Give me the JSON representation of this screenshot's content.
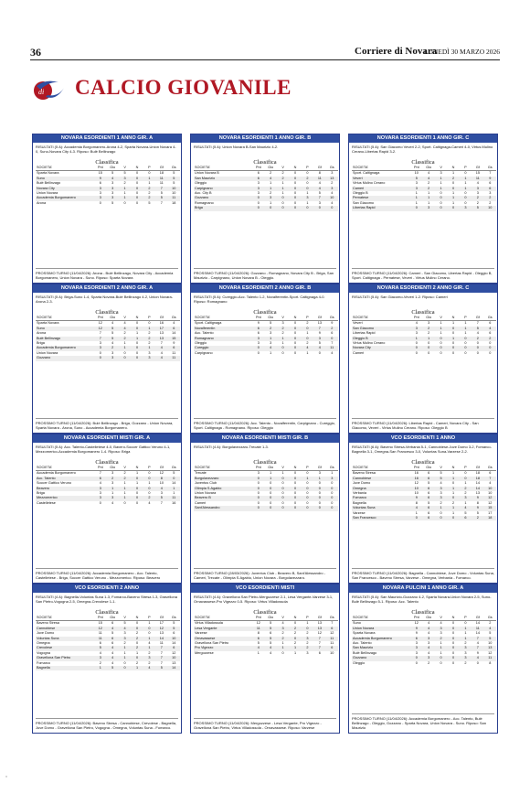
{
  "header": {
    "page_number": "36",
    "newspaper": "Corriere di Novara",
    "date": "LUNEDÌ 30 MARZO 2026"
  },
  "section": {
    "title": "CALCIO GIOVANILE",
    "logo_letter": "di"
  },
  "labels": {
    "classifica": "Classifica",
    "columns": [
      "SOCIETA'",
      "Pnt",
      "Gio",
      "V",
      "N",
      "P",
      "Gf",
      "Gs"
    ]
  },
  "panels": [
    {
      "title": "NOVARA ESORDIENTI 1 ANNO GIR. A",
      "results": "RISULTATI (5 A): Accademia Borgomanero-Arona 4-2, Sparta Novara-Union Novara 4-0, Suno-Novara City 4-3. Riposo: Bulè Bellinzago",
      "rows": [
        [
          "Sparta Novara",
          "15",
          "5",
          "5",
          "0",
          "0",
          "18",
          "5"
        ],
        [
          "Suno",
          "9",
          "4",
          "3",
          "0",
          "1",
          "11",
          "5"
        ],
        [
          "Bulè Bellinzago",
          "6",
          "3",
          "2",
          "0",
          "1",
          "11",
          "5"
        ],
        [
          "Novara City",
          "3",
          "3",
          "1",
          "0",
          "2",
          "7",
          "10"
        ],
        [
          "Union Novara",
          "3",
          "3",
          "1",
          "0",
          "2",
          "5",
          "10"
        ],
        [
          "Accademia Borgomanero",
          "3",
          "3",
          "1",
          "0",
          "2",
          "5",
          "11"
        ],
        [
          "Arona",
          "0",
          "5",
          "0",
          "0",
          "5",
          "7",
          "18"
        ]
      ],
      "prossimo": "PROSSIMO TURNO (11/04/2026): Arona - Bulè Bellinzago, Novara City - Accademia Borgomanero, Union Novara - Suno. Riposo: Sparta Novara"
    },
    {
      "title": "NOVARA ESORDIENTI 1 ANNO GIR. B",
      "results": "RISULTATI (5 A): Union Novara B-San Maurizio 4-2.",
      "rows": [
        [
          "Union Novara B",
          "6",
          "2",
          "2",
          "0",
          "0",
          "8",
          "3"
        ],
        [
          "San Maurizio",
          "6",
          "4",
          "2",
          "0",
          "2",
          "11",
          "13"
        ],
        [
          "Oleggio",
          "3",
          "1",
          "1",
          "0",
          "0",
          "4",
          "2"
        ],
        [
          "Carpignano",
          "3",
          "1",
          "1",
          "0",
          "0",
          "4",
          "3"
        ],
        [
          "Acc. City B",
          "3",
          "2",
          "1",
          "0",
          "1",
          "5",
          "4"
        ],
        [
          "Gozzano",
          "0",
          "3",
          "0",
          "0",
          "3",
          "7",
          "10"
        ],
        [
          "Romagnano",
          "0",
          "1",
          "0",
          "0",
          "1",
          "3",
          "4"
        ],
        [
          "Briga",
          "0",
          "0",
          "0",
          "0",
          "0",
          "0",
          "0"
        ]
      ],
      "prossimo": "PROSSIMO TURNO (11/04/2026): Gozzano - Romagnano, Novara City B - Briga, San Maurizio - Carpignano, Union Novara B - Oleggio."
    },
    {
      "title": "NOVARA ESORDIENTI 1 ANNO GIR. C",
      "results": "RISULTATI (5 A): San Giacomo Veveri 2-2, Sport. Caltignaga-Cameri 4-0, Virtus Mulino Cerano-Libertas Rapid 3-2.",
      "rows": [
        [
          "Sport. Caltignaga",
          "10",
          "4",
          "3",
          "1",
          "0",
          "15",
          "7"
        ],
        [
          "Veveri",
          "5",
          "4",
          "1",
          "2",
          "1",
          "11",
          "9"
        ],
        [
          "Virtus Mulino Cerano",
          "3",
          "2",
          "1",
          "0",
          "1",
          "4",
          "6"
        ],
        [
          "Cameri",
          "3",
          "2",
          "1",
          "0",
          "1",
          "3",
          "6"
        ],
        [
          "Oleggio B",
          "1",
          "1",
          "0",
          "1",
          "0",
          "3",
          "3"
        ],
        [
          "Pernatese",
          "1",
          "1",
          "0",
          "1",
          "0",
          "2",
          "2"
        ],
        [
          "San Giacomo",
          "1",
          "1",
          "0",
          "1",
          "0",
          "2",
          "2"
        ],
        [
          "Libertas Rapid",
          "0",
          "3",
          "0",
          "0",
          "3",
          "5",
          "10"
        ]
      ],
      "prossimo": "PROSSIMO TURNO (11/04/2026): Cameri - San Giacomo, Libertas Rapid - Oleggio B, Sport. Caltignaga - Pernatese, Veveri - Virtus Mulino Cerano."
    },
    {
      "title": "NOVARA ESORDIENTI 2 ANNO GIR. A",
      "results": "RISULTATI (5 A): Briga-Suno 1-4, Sparta Novara-Bulè Bellinzago 4-2, Union Novara-Arona 2-3.",
      "rows": [
        [
          "Sparta Novara",
          "12",
          "4",
          "4",
          "0",
          "0",
          "16",
          "4"
        ],
        [
          "Suno",
          "12",
          "5",
          "4",
          "0",
          "1",
          "17",
          "6"
        ],
        [
          "Arona",
          "7",
          "5",
          "2",
          "1",
          "2",
          "13",
          "14"
        ],
        [
          "Bulè Bellinzago",
          "7",
          "5",
          "2",
          "1",
          "2",
          "13",
          "15"
        ],
        [
          "Briga",
          "3",
          "4",
          "1",
          "0",
          "2",
          "7",
          "9"
        ],
        [
          "Accademia Borgomanero",
          "3",
          "2",
          "1",
          "0",
          "1",
          "4",
          "6"
        ],
        [
          "Union Novara",
          "0",
          "3",
          "0",
          "0",
          "3",
          "4",
          "11"
        ],
        [
          "Gozzano",
          "0",
          "3",
          "0",
          "0",
          "3",
          "4",
          "11"
        ]
      ],
      "prossimo": "PROSSIMO TURNO (11/04/2026): Bulè Bellinzago - Briga, Gozzano - Union Novara, Sparta Novara - Arona, Suno - Accademia Borgomanero."
    },
    {
      "title": "NOVARA ESORDIENTI 2 ANNO GIR. B",
      "results": "RISULTATI (5 A): Cureggio-Acc. Talento 1-2, Novalferentin-Sport. Caltignaga 4-0. Riposo: Romagnano",
      "rows": [
        [
          "Sport. Caltignaga",
          "9",
          "5",
          "3",
          "0",
          "2",
          "13",
          "9"
        ],
        [
          "Novalferentin",
          "6",
          "2",
          "2",
          "0",
          "0",
          "7",
          "2"
        ],
        [
          "Acc. Talento",
          "6",
          "3",
          "2",
          "0",
          "1",
          "9",
          "6"
        ],
        [
          "Romagnano",
          "3",
          "1",
          "1",
          "0",
          "0",
          "3",
          "0"
        ],
        [
          "Oleggio",
          "3",
          "3",
          "1",
          "0",
          "2",
          "5",
          "7"
        ],
        [
          "Cureggio",
          "0",
          "4",
          "0",
          "0",
          "4",
          "4",
          "11"
        ],
        [
          "Carpignano",
          "0",
          "1",
          "0",
          "0",
          "1",
          "0",
          "4"
        ]
      ],
      "prossimo": "PROSSIMO TURNO (11/04/2026): Acc. Talento - Novalferentin, Carpignano - Cureggio, Sport. Caltignaga - Romagnano. Riposo: Oleggio"
    },
    {
      "title": "NOVARA ESORDIENTI 2 ANNO GIR. C",
      "results": "RISULTATI (5 A): San Giacomo-Veveri 1-2. Riposo: Cameri",
      "rows": [
        [
          "Veveri",
          "4",
          "3",
          "1",
          "1",
          "1",
          "7",
          "6"
        ],
        [
          "San Giacomo",
          "3",
          "2",
          "1",
          "0",
          "1",
          "5",
          "4"
        ],
        [
          "Libertas Rapid",
          "3",
          "2",
          "1",
          "0",
          "1",
          "4",
          "6"
        ],
        [
          "Oleggio B",
          "1",
          "1",
          "0",
          "1",
          "0",
          "2",
          "2"
        ],
        [
          "Virtus Mulino Cerano",
          "0",
          "0",
          "0",
          "0",
          "0",
          "0",
          "0"
        ],
        [
          "Novara City",
          "0",
          "0",
          "0",
          "0",
          "0",
          "0",
          "0"
        ],
        [
          "Cameri",
          "0",
          "0",
          "0",
          "0",
          "0",
          "0",
          "0"
        ]
      ],
      "prossimo": "PROSSIMO TURNO (11/04/2026): Libertas Rapid - Cameri, Novara City - San Giacomo, Veveri - Virtus Mulino Cerano. Riposo: Oleggio B"
    },
    {
      "title": "NOVARA ESORDIENTI MISTI GIR. A",
      "results": "RISULTATI (5 A): Acc. Talento-Castelletese 4-0, Bavero-Soccer Gattico Veruno 4-1, Mezzomerico-Accademia Borgomanero 1-4. Riposo: Briga",
      "rows": [
        [
          "Accademia Borgomanero",
          "7",
          "3",
          "2",
          "1",
          "0",
          "12",
          "5"
        ],
        [
          "Acc. Talento",
          "6",
          "2",
          "2",
          "0",
          "0",
          "8",
          "0"
        ],
        [
          "Soccer Gattico Veruno",
          "4",
          "3",
          "1",
          "1",
          "1",
          "10",
          "14"
        ],
        [
          "Beavero",
          "3",
          "1",
          "1",
          "0",
          "0",
          "4",
          "1"
        ],
        [
          "Briga",
          "3",
          "1",
          "1",
          "0",
          "0",
          "3",
          "1"
        ],
        [
          "Mezzomerico",
          "3",
          "3",
          "1",
          "0",
          "2",
          "5",
          "11"
        ],
        [
          "Castelletese",
          "0",
          "4",
          "0",
          "0",
          "4",
          "7",
          "16"
        ]
      ],
      "prossimo": "PROSSIMO TURNO (11/04/2026): Accademia Borgomanero - Acc. Talento, Castelletese - Briga, Soccer Gattico Veruno - Mezzomerico. Riposo: Beavero"
    },
    {
      "title": "NOVARA ESORDIENTI MISTI GIR. B",
      "results": "RISULTATI (4 A): Borgolavezzaro-Trecate 1-3.",
      "rows": [
        [
          "Trecate",
          "3",
          "1",
          "1",
          "0",
          "0",
          "3",
          "1"
        ],
        [
          "Borgolavezzaro",
          "0",
          "1",
          "0",
          "0",
          "1",
          "1",
          "3"
        ],
        [
          "Juventus Club",
          "0",
          "0",
          "0",
          "0",
          "0",
          "0",
          "0"
        ],
        [
          "Olimpia S.Agabio",
          "0",
          "0",
          "0",
          "0",
          "0",
          "0",
          "0"
        ],
        [
          "Union Novara",
          "0",
          "0",
          "0",
          "0",
          "0",
          "0",
          "0"
        ],
        [
          "Beavero B",
          "0",
          "0",
          "0",
          "0",
          "0",
          "0",
          "0"
        ],
        [
          "Cameri",
          "0",
          "0",
          "0",
          "0",
          "0",
          "0",
          "0"
        ],
        [
          "Sant'Alessandro",
          "0",
          "0",
          "0",
          "0",
          "0",
          "0",
          "0"
        ]
      ],
      "prossimo": "PROSSIMO TURNO (28/03/2026): Juventus Club - Beavero B, Sant'Alessandro - Cameri, Trecate - Olimpia S.Agabio, Union Novara - Borgolavezzaro."
    },
    {
      "title": "VCO ESORDIENTI 1 ANNO",
      "results": "RISULTATI (6 A): Baveno Stresa-Verbania 5-1, Cannobiese-Juve Domo 3-2, Fomarco-Bagnella 3-1, Omegna-San Francesco 3-0, Voluntas Suna-Varzese 2-2.",
      "rows": [
        [
          "Baveno Stresa",
          "16",
          "6",
          "5",
          "1",
          "0",
          "18",
          "6"
        ],
        [
          "Cannobiese",
          "16",
          "6",
          "5",
          "1",
          "0",
          "18",
          "7"
        ],
        [
          "Juve Domo",
          "12",
          "5",
          "4",
          "0",
          "1",
          "14",
          "4"
        ],
        [
          "Omegna",
          "10",
          "6",
          "3",
          "1",
          "2",
          "14",
          "10"
        ],
        [
          "Verbania",
          "10",
          "6",
          "3",
          "1",
          "2",
          "13",
          "10"
        ],
        [
          "Fomarco",
          "9",
          "6",
          "3",
          "0",
          "3",
          "9",
          "12"
        ],
        [
          "Bagnella",
          "8",
          "5",
          "2",
          "2",
          "1",
          "8",
          "12"
        ],
        [
          "Voluntas Suna",
          "4",
          "6",
          "1",
          "1",
          "4",
          "9",
          "15"
        ],
        [
          "Varzese",
          "1",
          "6",
          "0",
          "1",
          "5",
          "5",
          "17"
        ],
        [
          "San Francesco",
          "0",
          "6",
          "0",
          "0",
          "6",
          "2",
          "18"
        ]
      ],
      "prossimo": "PROSSIMO TURNO (11/04/2026): Bagnella - Cannobiese, Juve Domo - Voluntas Suna, San Francesco - Baveno Stresa, Varzese - Omegna, Verbania - Fomarco."
    },
    {
      "title": "VCO ESORDIENTI 2 ANNO",
      "results": "RISULTATI (4 A): Bagnella-Voluntas Suna 1-3, Fomarco-Baveno Stresa 1-3, Gravellona San Pietro-Vogogna 2-5, Omegna-Crevolese 1-1.",
      "rows": [
        [
          "Baveno Stresa",
          "15",
          "6",
          "5",
          "0",
          "1",
          "17",
          "5"
        ],
        [
          "Cannobiese",
          "12",
          "4",
          "4",
          "0",
          "0",
          "12",
          "5"
        ],
        [
          "Juve Domo",
          "11",
          "5",
          "3",
          "2",
          "0",
          "13",
          "6"
        ],
        [
          "Voluntas Suna",
          "11",
          "6",
          "3",
          "2",
          "1",
          "14",
          "10"
        ],
        [
          "Omegna",
          "6",
          "6",
          "2",
          "0",
          "4",
          "11",
          "14"
        ],
        [
          "Crevolese",
          "5",
          "4",
          "1",
          "2",
          "1",
          "7",
          "6"
        ],
        [
          "Vogogna",
          "4",
          "4",
          "1",
          "1",
          "2",
          "7",
          "12"
        ],
        [
          "Gravellona San Pietro",
          "3",
          "4",
          "1",
          "0",
          "3",
          "7",
          "10"
        ],
        [
          "Fomarco",
          "2",
          "4",
          "0",
          "2",
          "2",
          "7",
          "13"
        ],
        [
          "Bagnella",
          "1",
          "5",
          "0",
          "1",
          "4",
          "5",
          "14"
        ]
      ],
      "prossimo": "PROSSIMO TURNO (11/04/2026): Baveno Stresa - Cannobiese, Crevolese - Bagnella, Juve Domo - Gravellona San Pietro, Vogogna - Omegna, Voluntas Suna - Fomarco."
    },
    {
      "title": "VCO ESORDIENTI MISTI",
      "results": "RISULTATI (4 A): Ornavasso-Pro Vigezzo 5-1, Vagogna? wait",
      "rows": [
        [
          "Virtus Villadossola",
          "12",
          "5",
          "4",
          "0",
          "1",
          "13",
          "7"
        ],
        [
          "Lesa Vergante",
          "11",
          "5",
          "3",
          "2",
          "0",
          "13",
          "6"
        ],
        [
          "Varzese",
          "8",
          "6",
          "2",
          "2",
          "2",
          "12",
          "12"
        ],
        [
          "Ornavassese",
          "6",
          "5",
          "2",
          "0",
          "3",
          "7",
          "11"
        ],
        [
          "Gravellona San Pietro",
          "5",
          "5",
          "1",
          "2",
          "2",
          "7",
          "11"
        ],
        [
          "Pro Vigezzo",
          "4",
          "4",
          "1",
          "1",
          "2",
          "7",
          "6"
        ],
        [
          "Mergozzese",
          "1",
          "4",
          "0",
          "1",
          "3",
          "6",
          "10"
        ]
      ],
      "prossimo": "PROSSIMO TURNO (11/04/2026): Mergozzese - Lesa Vergante, Pro Vigezzo - Gravellona San Pietro, Virtus Villadossola - Ornavassese. Riposo: Varzese"
    },
    {
      "title": "NOVARA PULCINI 1 ANNO GIR. A",
      "results": "RISULTATI (5 A): San Maurizio-Gozzano 4-2, Sparta Novara-Union Novara 2-5, Suno-Bulè Bellinzago 5-1. Riposo: Acc. Talento",
      "rows": [
        [
          "Suno",
          "12",
          "4",
          "4",
          "0",
          "0",
          "14",
          "2"
        ],
        [
          "Union Novara",
          "9",
          "4",
          "3",
          "0",
          "1",
          "11",
          "4"
        ],
        [
          "Sparta Novara",
          "9",
          "4",
          "3",
          "0",
          "1",
          "14",
          "5"
        ],
        [
          "Accademia Borgomanero",
          "6",
          "3",
          "2",
          "0",
          "1",
          "7",
          "5"
        ],
        [
          "Acc. Talento",
          "3",
          "3",
          "1",
          "0",
          "2",
          "4",
          "10"
        ],
        [
          "San Maurizio",
          "3",
          "4",
          "1",
          "0",
          "3",
          "7",
          "13"
        ],
        [
          "Bulè Bellinzago",
          "3",
          "4",
          "1",
          "0",
          "3",
          "9",
          "12"
        ],
        [
          "Gozzano",
          "0",
          "3",
          "0",
          "0",
          "3",
          "4",
          "11"
        ],
        [
          "Oleggio",
          "0",
          "2",
          "0",
          "0",
          "2",
          "0",
          "8"
        ]
      ],
      "prossimo": "PROSSIMO TURNO (11/04/2026): Accademia Borgomanero - Acc. Talento, Bulè Bellinzago - Oleggio, Gozzano - Sparta Novara, Union Novara - Suno. Riposo: San Maurizio"
    }
  ]
}
